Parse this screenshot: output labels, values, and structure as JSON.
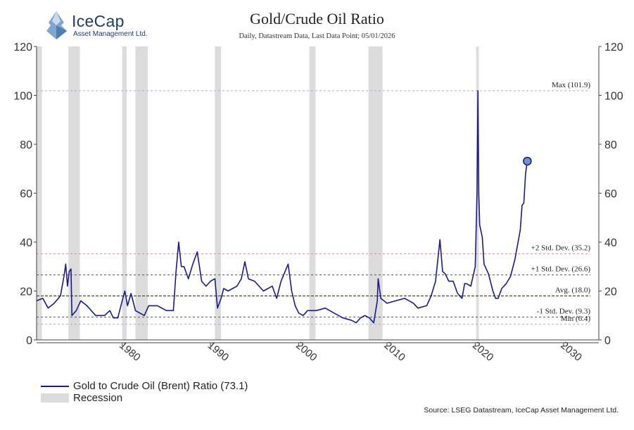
{
  "header": {
    "logo_name": "IceCap",
    "logo_sub": "Asset Management Ltd.",
    "title": "Gold/Crude Oil Ratio",
    "subtitle": "Daily, Datastream Data, Last Data Point; 05/01/2026"
  },
  "legend": {
    "series_label": "Gold to Crude Oil (Brent) Ratio (73.1)",
    "recession_label": "Recession"
  },
  "source": "Source: LSEG Datastream, IceCap Asset Management Ltd.",
  "colors": {
    "series": "#1a1a8c",
    "recession": "#dcdcdc",
    "sd2": "#d98a9a",
    "sd1": "#555555",
    "avg": "#333300",
    "extreme": "#b0a8c8"
  },
  "chart_data": {
    "type": "line",
    "title": "Gold/Crude Oil Ratio",
    "subtitle": "Daily, Datastream Data, Last Data Point; 05/01/2026",
    "xlim": [
      1970.3,
      2034
    ],
    "ylim": [
      0,
      120
    ],
    "x_ticks": [
      1980,
      1990,
      2000,
      2010,
      2020,
      2030
    ],
    "y_ticks": [
      0,
      20,
      40,
      60,
      80,
      100,
      120
    ],
    "series": [
      {
        "name": "Gold to Crude Oil (Brent) Ratio (73.1)",
        "points": [
          [
            1970.3,
            16
          ],
          [
            1971.0,
            17
          ],
          [
            1971.6,
            13
          ],
          [
            1972.3,
            15
          ],
          [
            1973.0,
            18
          ],
          [
            1973.4,
            26
          ],
          [
            1973.6,
            31
          ],
          [
            1973.8,
            22
          ],
          [
            1974.0,
            28
          ],
          [
            1974.2,
            29
          ],
          [
            1974.3,
            10
          ],
          [
            1974.8,
            12
          ],
          [
            1975.3,
            16
          ],
          [
            1976.0,
            14
          ],
          [
            1977.0,
            10
          ],
          [
            1978.0,
            10
          ],
          [
            1978.6,
            12
          ],
          [
            1979.0,
            9
          ],
          [
            1979.5,
            9
          ],
          [
            1980.0,
            16
          ],
          [
            1980.3,
            20
          ],
          [
            1980.6,
            14
          ],
          [
            1981.0,
            19
          ],
          [
            1981.5,
            12
          ],
          [
            1982.5,
            10
          ],
          [
            1983.0,
            14
          ],
          [
            1984.0,
            14
          ],
          [
            1985.0,
            12
          ],
          [
            1985.8,
            12
          ],
          [
            1986.1,
            28
          ],
          [
            1986.4,
            40
          ],
          [
            1986.7,
            30
          ],
          [
            1987.0,
            30
          ],
          [
            1987.5,
            25
          ],
          [
            1988.0,
            31
          ],
          [
            1988.5,
            36
          ],
          [
            1989.0,
            24
          ],
          [
            1989.5,
            22
          ],
          [
            1990.0,
            24
          ],
          [
            1990.5,
            25
          ],
          [
            1990.8,
            13
          ],
          [
            1991.2,
            17
          ],
          [
            1991.5,
            21
          ],
          [
            1992.0,
            20
          ],
          [
            1992.5,
            21
          ],
          [
            1993.0,
            22
          ],
          [
            1993.5,
            25
          ],
          [
            1993.9,
            32
          ],
          [
            1994.3,
            25
          ],
          [
            1995.0,
            24
          ],
          [
            1996.0,
            20
          ],
          [
            1997.0,
            22
          ],
          [
            1997.5,
            17
          ],
          [
            1998.0,
            24
          ],
          [
            1998.8,
            31
          ],
          [
            1999.2,
            20
          ],
          [
            1999.6,
            14
          ],
          [
            2000.0,
            11
          ],
          [
            2000.5,
            10
          ],
          [
            2001.0,
            12
          ],
          [
            2002.0,
            12
          ],
          [
            2003.0,
            13
          ],
          [
            2004.0,
            11
          ],
          [
            2005.0,
            9
          ],
          [
            2006.0,
            8
          ],
          [
            2006.5,
            7
          ],
          [
            2007.0,
            9
          ],
          [
            2007.5,
            10
          ],
          [
            2008.0,
            9
          ],
          [
            2008.5,
            7
          ],
          [
            2008.9,
            16
          ],
          [
            2009.0,
            25
          ],
          [
            2009.3,
            17
          ],
          [
            2010.0,
            15
          ],
          [
            2011.0,
            16
          ],
          [
            2012.0,
            17
          ],
          [
            2013.0,
            15
          ],
          [
            2013.5,
            13
          ],
          [
            2014.5,
            14
          ],
          [
            2015.0,
            18
          ],
          [
            2015.5,
            24
          ],
          [
            2016.0,
            41
          ],
          [
            2016.3,
            28
          ],
          [
            2016.6,
            27
          ],
          [
            2017.0,
            24
          ],
          [
            2017.5,
            24
          ],
          [
            2018.0,
            19
          ],
          [
            2018.5,
            17
          ],
          [
            2018.8,
            23
          ],
          [
            2019.0,
            23
          ],
          [
            2019.5,
            22
          ],
          [
            2020.0,
            30
          ],
          [
            2020.2,
            60
          ],
          [
            2020.3,
            101.9
          ],
          [
            2020.4,
            60
          ],
          [
            2020.5,
            47
          ],
          [
            2020.8,
            42
          ],
          [
            2021.0,
            31
          ],
          [
            2021.5,
            27
          ],
          [
            2022.0,
            20
          ],
          [
            2022.3,
            17
          ],
          [
            2022.6,
            17
          ],
          [
            2023.0,
            21
          ],
          [
            2023.5,
            23
          ],
          [
            2024.0,
            26
          ],
          [
            2024.5,
            33
          ],
          [
            2024.9,
            41
          ],
          [
            2025.1,
            45
          ],
          [
            2025.3,
            55
          ],
          [
            2025.5,
            56
          ],
          [
            2025.7,
            68
          ],
          [
            2025.9,
            73.1
          ]
        ]
      }
    ],
    "last_point": [
      2025.9,
      73.1
    ],
    "recessions": [
      [
        1970.0,
        1970.9
      ],
      [
        1973.9,
        1975.2
      ],
      [
        1980.0,
        1980.5
      ],
      [
        1981.5,
        1982.9
      ],
      [
        1990.5,
        1991.2
      ],
      [
        2001.2,
        2001.9
      ],
      [
        2007.9,
        2009.5
      ],
      [
        2020.1,
        2020.4
      ]
    ],
    "reference_lines": [
      {
        "label": "Max (101.9)",
        "value": 101.9,
        "kind": "extreme"
      },
      {
        "label": "+2 Std. Dev. (35.2)",
        "value": 35.2,
        "kind": "sd2"
      },
      {
        "label": "+1 Std. Dev. (26.6)",
        "value": 26.6,
        "kind": "sd1"
      },
      {
        "label": "Avg. (18.0)",
        "value": 18.0,
        "kind": "avg"
      },
      {
        "label": "-1 Std. Dev. (9.3)",
        "value": 9.3,
        "kind": "sd1"
      },
      {
        "label": "Min (6.4)",
        "value": 6.4,
        "kind": "extreme"
      }
    ],
    "grid": false,
    "legend_position": "bottom-left"
  }
}
